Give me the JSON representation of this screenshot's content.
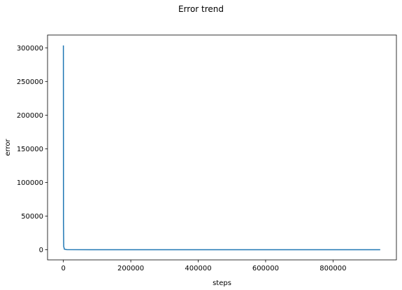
{
  "chart_data": {
    "type": "line",
    "title": "Error trend",
    "xlabel": "steps",
    "ylabel": "error",
    "xlim": [
      -47000,
      988000
    ],
    "ylim": [
      -15000,
      319000
    ],
    "xticks": [
      0,
      200000,
      400000,
      600000,
      800000
    ],
    "yticks": [
      0,
      50000,
      100000,
      150000,
      200000,
      250000,
      300000
    ],
    "grid": false,
    "series": [
      {
        "color": "#1f77b4",
        "x": [
          0,
          300,
          1000,
          3000,
          10000,
          100000,
          300000,
          500000,
          700000,
          940000
        ],
        "y": [
          303500,
          40000,
          5000,
          800,
          200,
          80,
          50,
          40,
          35,
          30
        ]
      }
    ]
  }
}
